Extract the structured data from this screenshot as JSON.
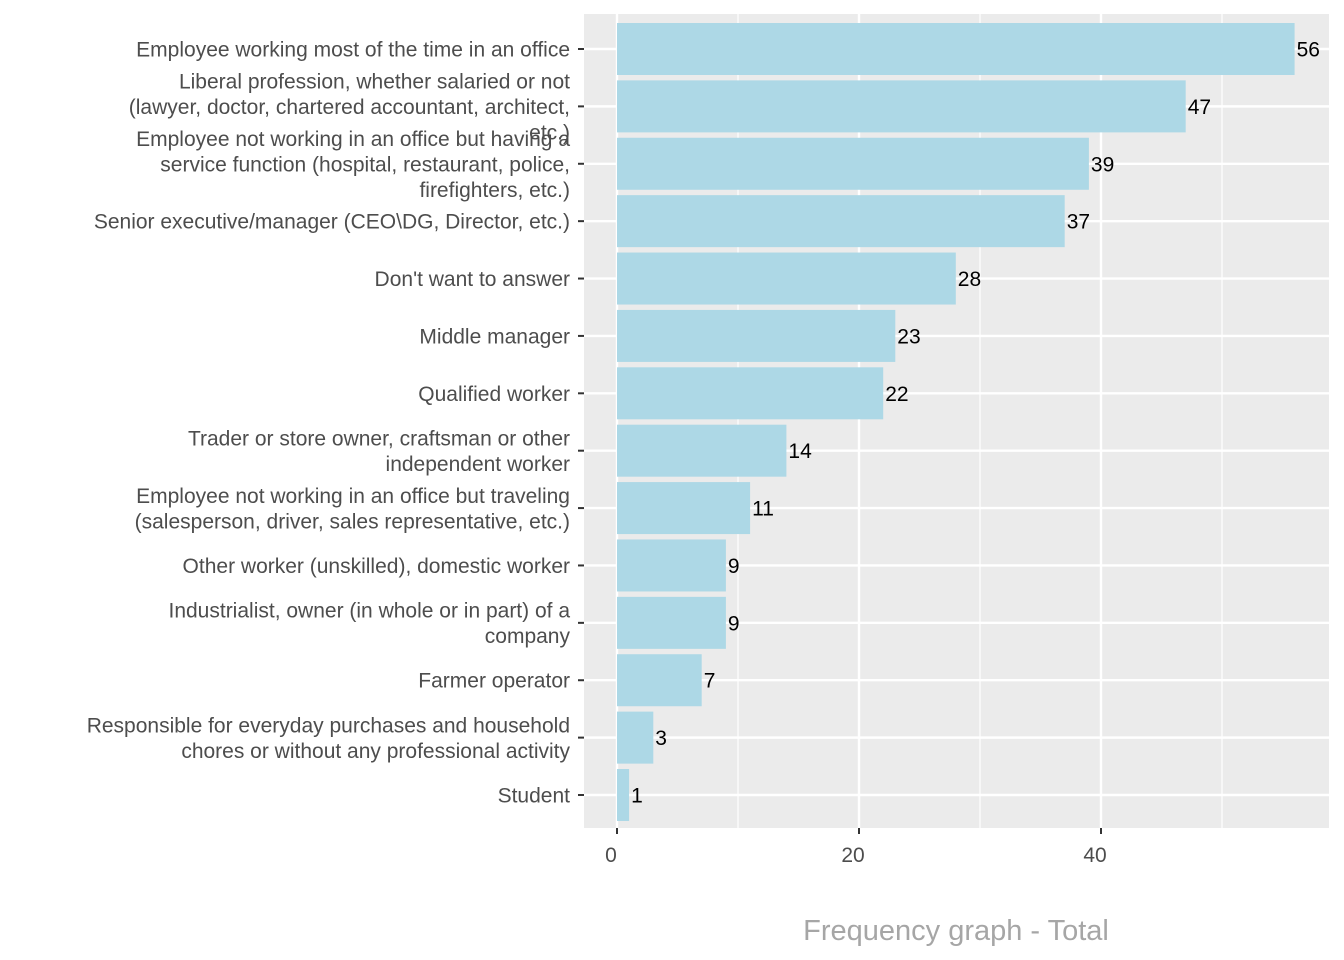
{
  "chart_data": {
    "type": "bar",
    "orientation": "horizontal",
    "title": "",
    "xlabel": "Frequency graph - Total",
    "ylabel": "",
    "xlim": [
      0,
      58.5
    ],
    "xticks": [
      0,
      20,
      40
    ],
    "grid": true,
    "colors": {
      "bar": "#add8e6",
      "panel": "#ebebeb",
      "grid": "#ffffff",
      "axis_text": "#4d4d4d",
      "value_text": "#000000",
      "xlabel": "#a6a6a6"
    },
    "categories": [
      [
        "Employee working most of the time in an office"
      ],
      [
        "Liberal profession, whether salaried or not",
        "(lawyer, doctor, chartered accountant, architect,",
        "etc.)"
      ],
      [
        "Employee not working in an office but having a",
        "service function (hospital, restaurant, police,",
        "firefighters, etc.)"
      ],
      [
        "Senior executive/manager (CEO\\DG, Director, etc.)"
      ],
      [
        "Don't want to answer"
      ],
      [
        "Middle manager"
      ],
      [
        "Qualified worker"
      ],
      [
        "Trader or store owner, craftsman or other",
        "independent worker"
      ],
      [
        "Employee not working in an office but traveling",
        "(salesperson, driver, sales representative, etc.)"
      ],
      [
        "Other worker (unskilled), domestic worker"
      ],
      [
        "Industrialist, owner (in whole or in part) of a",
        "company"
      ],
      [
        "Farmer operator"
      ],
      [
        "Responsible for everyday purchases and household",
        "chores or without any professional activity"
      ],
      [
        "Student"
      ]
    ],
    "values": [
      56,
      47,
      39,
      37,
      28,
      23,
      22,
      14,
      11,
      9,
      9,
      7,
      3,
      1
    ]
  }
}
